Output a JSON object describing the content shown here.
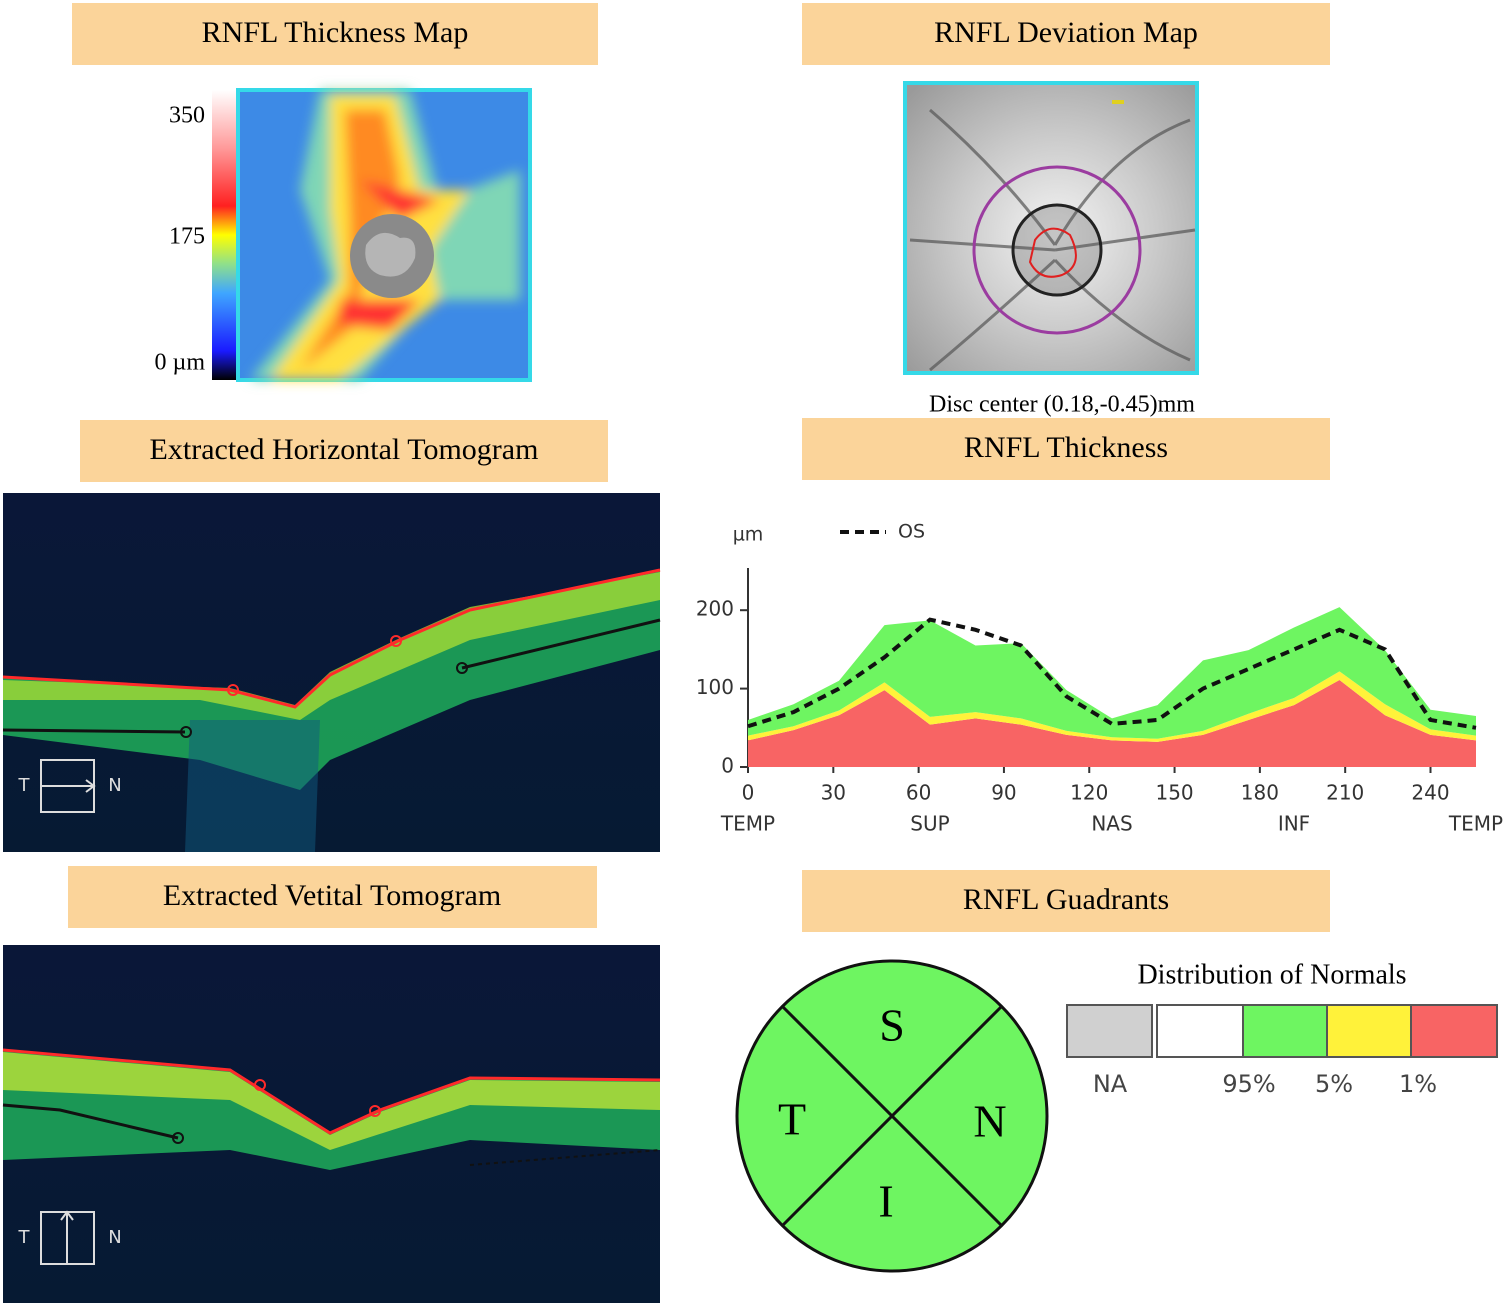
{
  "panels": {
    "thickness_map": {
      "title": "RNFL Thickness  Map",
      "scale_labels": [
        "350",
        "175",
        "0 µm"
      ]
    },
    "deviation_map": {
      "title": "RNFL Deviation  Map",
      "caption": "Disc center (0.18,-0.45)mm"
    },
    "horizontal": {
      "title": "Extracted  Horizontal  Tomogram",
      "left": "T",
      "right": "N"
    },
    "vertical": {
      "title": "Extracted  Vetital  Tomogram",
      "left": "T",
      "right": "N"
    },
    "quadrants": {
      "title": "RNFL Guadrants",
      "labels": [
        "S",
        "T",
        "N",
        "I"
      ],
      "legend_title": "Distribution  of Normals",
      "legend_labels": [
        "NA",
        "95%",
        "5%",
        "1%"
      ]
    }
  },
  "chart_data": {
    "type": "area",
    "title": "RNFL Thickness",
    "y_label": "µm",
    "x": [
      0,
      16,
      32,
      48,
      64,
      80,
      96,
      112,
      128,
      144,
      160,
      176,
      192,
      208,
      224,
      240,
      256
    ],
    "series": [
      {
        "color": "#f86464",
        "stacked": true,
        "values": [
          34,
          47,
          66,
          98,
          54,
          62,
          54,
          41,
          34,
          32,
          41,
          60,
          79,
          111,
          66,
          41,
          34
        ]
      },
      {
        "color": "#fff23a",
        "stacked": true,
        "values": [
          6,
          5,
          6,
          10,
          10,
          8,
          8,
          5,
          4,
          4,
          5,
          8,
          9,
          11,
          14,
          7,
          6
        ]
      },
      {
        "color": "#6ef561",
        "stacked": true,
        "values": [
          20,
          28,
          38,
          73,
          123,
          85,
          96,
          52,
          24,
          43,
          90,
          81,
          90,
          82,
          69,
          25,
          25
        ]
      },
      {
        "name": "OS",
        "color": "#111111",
        "dashed": true,
        "values": [
          52,
          70,
          100,
          140,
          188,
          175,
          155,
          90,
          55,
          60,
          100,
          125,
          150,
          175,
          150,
          60,
          50
        ]
      }
    ],
    "xlim": [
      0,
      256
    ],
    "xticks": [
      0,
      30,
      60,
      90,
      120,
      150,
      180,
      210,
      240
    ],
    "direction_ticks": [
      {
        "value": 0,
        "label": "TEMP"
      },
      {
        "value": 64,
        "label": "SUP"
      },
      {
        "value": 128,
        "label": "NAS"
      },
      {
        "value": 192,
        "label": "INF"
      },
      {
        "value": 256,
        "label": "TEMP"
      }
    ],
    "ylim": [
      0,
      250
    ],
    "yticks": [
      0,
      100,
      200
    ]
  }
}
